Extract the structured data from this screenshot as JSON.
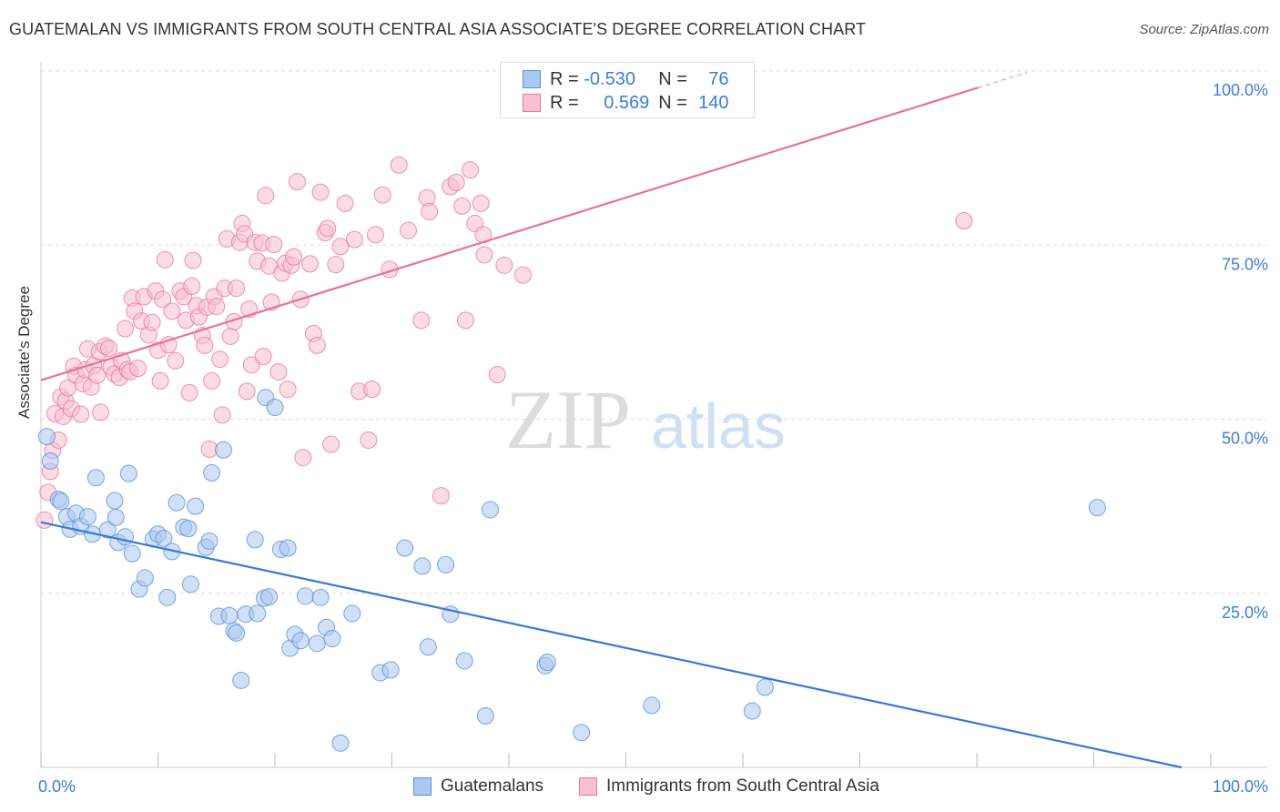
{
  "title": "GUATEMALAN VS IMMIGRANTS FROM SOUTH CENTRAL ASIA ASSOCIATE'S DEGREE CORRELATION CHART",
  "source": "Source: ZipAtlas.com",
  "watermark": {
    "zip": "ZIP",
    "atlas": "atlas"
  },
  "legend": {
    "r_label": "R =",
    "n_label": "N =",
    "rows": [
      {
        "r": "-0.530",
        "n": "76",
        "color": "#aac8f0",
        "border": "#5a8fd8"
      },
      {
        "r": "0.569",
        "n": "140",
        "color": "#f8c0d0",
        "border": "#e8779c"
      }
    ]
  },
  "chart_data": {
    "type": "scatter",
    "xlabel": "",
    "ylabel": "Associate's Degree",
    "xlim": [
      0,
      100
    ],
    "ylim": [
      0,
      100
    ],
    "x_tick_labels": [
      "0.0%",
      "100.0%"
    ],
    "y_ticks": [
      25,
      50,
      75,
      100
    ],
    "y_tick_labels": [
      "25.0%",
      "50.0%",
      "75.0%",
      "100.0%"
    ],
    "grid": true,
    "legend_position": "bottom",
    "series": [
      {
        "name": "Guatemalans",
        "color": "#5a8fd8",
        "fill": "#aac8f0",
        "trend": {
          "x": [
            0,
            97.5
          ],
          "y": [
            35.2,
            0
          ]
        },
        "points": [
          [
            0.5,
            47.5
          ],
          [
            0.8,
            44
          ],
          [
            1.5,
            38.5
          ],
          [
            1.7,
            38.2
          ],
          [
            2.2,
            36
          ],
          [
            2.5,
            34.2
          ],
          [
            3.0,
            36.5
          ],
          [
            3.4,
            34.6
          ],
          [
            4.0,
            36
          ],
          [
            4.4,
            33.5
          ],
          [
            4.7,
            41.6
          ],
          [
            5.7,
            34.1
          ],
          [
            6.3,
            38.3
          ],
          [
            6.4,
            35.9
          ],
          [
            6.6,
            32.3
          ],
          [
            7.2,
            33.1
          ],
          [
            7.5,
            42.2
          ],
          [
            7.8,
            30.7
          ],
          [
            8.4,
            25.6
          ],
          [
            8.9,
            27.2
          ],
          [
            9.6,
            32.8
          ],
          [
            10.0,
            33.5
          ],
          [
            10.5,
            32.9
          ],
          [
            10.8,
            24.4
          ],
          [
            11.2,
            31
          ],
          [
            11.6,
            38
          ],
          [
            12.2,
            34.5
          ],
          [
            12.6,
            34.3
          ],
          [
            12.8,
            26.3
          ],
          [
            13.2,
            37.5
          ],
          [
            14.1,
            31.6
          ],
          [
            14.4,
            32.5
          ],
          [
            14.6,
            42.3
          ],
          [
            15.2,
            21.7
          ],
          [
            15.6,
            45.6
          ],
          [
            16.1,
            21.8
          ],
          [
            16.5,
            19.6
          ],
          [
            16.7,
            19.3
          ],
          [
            17.1,
            12.5
          ],
          [
            17.5,
            22
          ],
          [
            18.3,
            32.7
          ],
          [
            18.5,
            22.1
          ],
          [
            19.1,
            24.3
          ],
          [
            19.5,
            24.5
          ],
          [
            19.2,
            53.1
          ],
          [
            20.0,
            51.7
          ],
          [
            20.5,
            31.3
          ],
          [
            21.1,
            31.5
          ],
          [
            21.3,
            17.1
          ],
          [
            21.7,
            19.1
          ],
          [
            22.2,
            18.2
          ],
          [
            22.6,
            24.6
          ],
          [
            23.6,
            17.8
          ],
          [
            23.9,
            24.4
          ],
          [
            24.4,
            20.1
          ],
          [
            24.9,
            18.5
          ],
          [
            25.6,
            3.5
          ],
          [
            26.6,
            22.1
          ],
          [
            29.0,
            13.6
          ],
          [
            29.9,
            14
          ],
          [
            31.1,
            31.5
          ],
          [
            32.6,
            28.9
          ],
          [
            33.1,
            17.3
          ],
          [
            34.6,
            29.1
          ],
          [
            35.0,
            22
          ],
          [
            36.2,
            15.3
          ],
          [
            38.0,
            7.4
          ],
          [
            38.4,
            37
          ],
          [
            43.1,
            14.6
          ],
          [
            43.3,
            15.1
          ],
          [
            46.2,
            5
          ],
          [
            52.2,
            8.9
          ],
          [
            60.8,
            8.1
          ],
          [
            61.9,
            11.5
          ],
          [
            90.3,
            37.3
          ]
        ]
      },
      {
        "name": "Immigrants from South Central Asia",
        "color": "#e8779c",
        "fill": "#f8c0d0",
        "trend": {
          "x": [
            0,
            80.1
          ],
          "y": [
            55.6,
            97.6
          ]
        },
        "trend_dashed": {
          "x": [
            80.1,
            84.3
          ],
          "y": [
            97.6,
            99.8
          ]
        },
        "points": [
          [
            0.3,
            35.5
          ],
          [
            0.6,
            39.5
          ],
          [
            0.8,
            42.5
          ],
          [
            1.0,
            45.5
          ],
          [
            1.2,
            50.8
          ],
          [
            1.5,
            47
          ],
          [
            1.7,
            53.2
          ],
          [
            1.9,
            50.4
          ],
          [
            2.1,
            52.6
          ],
          [
            2.3,
            54.5
          ],
          [
            2.6,
            51.5
          ],
          [
            2.8,
            57.6
          ],
          [
            3.0,
            56.3
          ],
          [
            3.4,
            50.7
          ],
          [
            3.6,
            55.1
          ],
          [
            3.8,
            57.1
          ],
          [
            4.0,
            60.1
          ],
          [
            4.3,
            54.6
          ],
          [
            4.5,
            57.7
          ],
          [
            4.8,
            56.3
          ],
          [
            5.0,
            59.7
          ],
          [
            5.1,
            51
          ],
          [
            5.5,
            60.5
          ],
          [
            5.8,
            60.2
          ],
          [
            6.0,
            57.5
          ],
          [
            6.3,
            56.5
          ],
          [
            6.7,
            56
          ],
          [
            6.9,
            58.4
          ],
          [
            7.2,
            63
          ],
          [
            7.4,
            57.1
          ],
          [
            7.6,
            56.8
          ],
          [
            7.8,
            67.4
          ],
          [
            8.0,
            65.5
          ],
          [
            8.3,
            57.3
          ],
          [
            8.6,
            64.1
          ],
          [
            8.8,
            67.6
          ],
          [
            9.2,
            62.1
          ],
          [
            9.5,
            63.9
          ],
          [
            9.8,
            68.4
          ],
          [
            10.0,
            59.9
          ],
          [
            10.2,
            55.5
          ],
          [
            10.4,
            67.2
          ],
          [
            10.6,
            72.9
          ],
          [
            10.9,
            60.7
          ],
          [
            11.2,
            65.5
          ],
          [
            11.5,
            58.4
          ],
          [
            11.9,
            68.4
          ],
          [
            12.2,
            67.6
          ],
          [
            12.4,
            64.2
          ],
          [
            12.7,
            53.8
          ],
          [
            12.9,
            69.1
          ],
          [
            13.0,
            72.8
          ],
          [
            13.3,
            66.3
          ],
          [
            13.5,
            64.7
          ],
          [
            13.8,
            62
          ],
          [
            14.0,
            60.6
          ],
          [
            14.2,
            66.1
          ],
          [
            14.4,
            45.7
          ],
          [
            14.6,
            55.5
          ],
          [
            14.8,
            67.6
          ],
          [
            15.0,
            66.2
          ],
          [
            15.3,
            58.6
          ],
          [
            15.5,
            50.6
          ],
          [
            15.7,
            68.8
          ],
          [
            15.9,
            75.9
          ],
          [
            16.2,
            61.9
          ],
          [
            16.5,
            64
          ],
          [
            16.7,
            68.8
          ],
          [
            17.0,
            75.4
          ],
          [
            17.2,
            78.1
          ],
          [
            17.4,
            76.6
          ],
          [
            17.6,
            54
          ],
          [
            17.8,
            65.8
          ],
          [
            18.0,
            57.8
          ],
          [
            18.3,
            75.4
          ],
          [
            18.5,
            72.7
          ],
          [
            18.9,
            75.3
          ],
          [
            19.0,
            59
          ],
          [
            19.2,
            82.1
          ],
          [
            19.5,
            72
          ],
          [
            19.7,
            66.8
          ],
          [
            19.9,
            75.1
          ],
          [
            20.3,
            56.8
          ],
          [
            20.6,
            71
          ],
          [
            20.9,
            72.4
          ],
          [
            21.1,
            54.3
          ],
          [
            21.4,
            72.1
          ],
          [
            21.6,
            73.3
          ],
          [
            21.9,
            84.1
          ],
          [
            22.2,
            67.2
          ],
          [
            22.4,
            44.5
          ],
          [
            23.0,
            72.3
          ],
          [
            23.3,
            62.3
          ],
          [
            23.6,
            60.6
          ],
          [
            23.9,
            82.6
          ],
          [
            24.3,
            76.8
          ],
          [
            24.5,
            77.4
          ],
          [
            24.8,
            46.4
          ],
          [
            25.2,
            72.2
          ],
          [
            25.6,
            74.8
          ],
          [
            26.0,
            81
          ],
          [
            26.8,
            75.8
          ],
          [
            27.2,
            54
          ],
          [
            28.0,
            47
          ],
          [
            28.3,
            54.3
          ],
          [
            28.6,
            76.5
          ],
          [
            29.2,
            82.2
          ],
          [
            29.8,
            71.5
          ],
          [
            30.6,
            86.5
          ],
          [
            31.4,
            77.1
          ],
          [
            32.5,
            64.2
          ],
          [
            33.0,
            81.8
          ],
          [
            33.2,
            79.8
          ],
          [
            34.2,
            39
          ],
          [
            35.0,
            83.4
          ],
          [
            35.5,
            84
          ],
          [
            36.0,
            80.6
          ],
          [
            36.3,
            64.2
          ],
          [
            36.7,
            85.8
          ],
          [
            37.1,
            78.1
          ],
          [
            37.6,
            81
          ],
          [
            37.8,
            76.5
          ],
          [
            37.9,
            73.6
          ],
          [
            39.0,
            56.4
          ],
          [
            39.6,
            72.1
          ],
          [
            41.2,
            70.7
          ],
          [
            78.9,
            78.5
          ]
        ]
      }
    ]
  }
}
